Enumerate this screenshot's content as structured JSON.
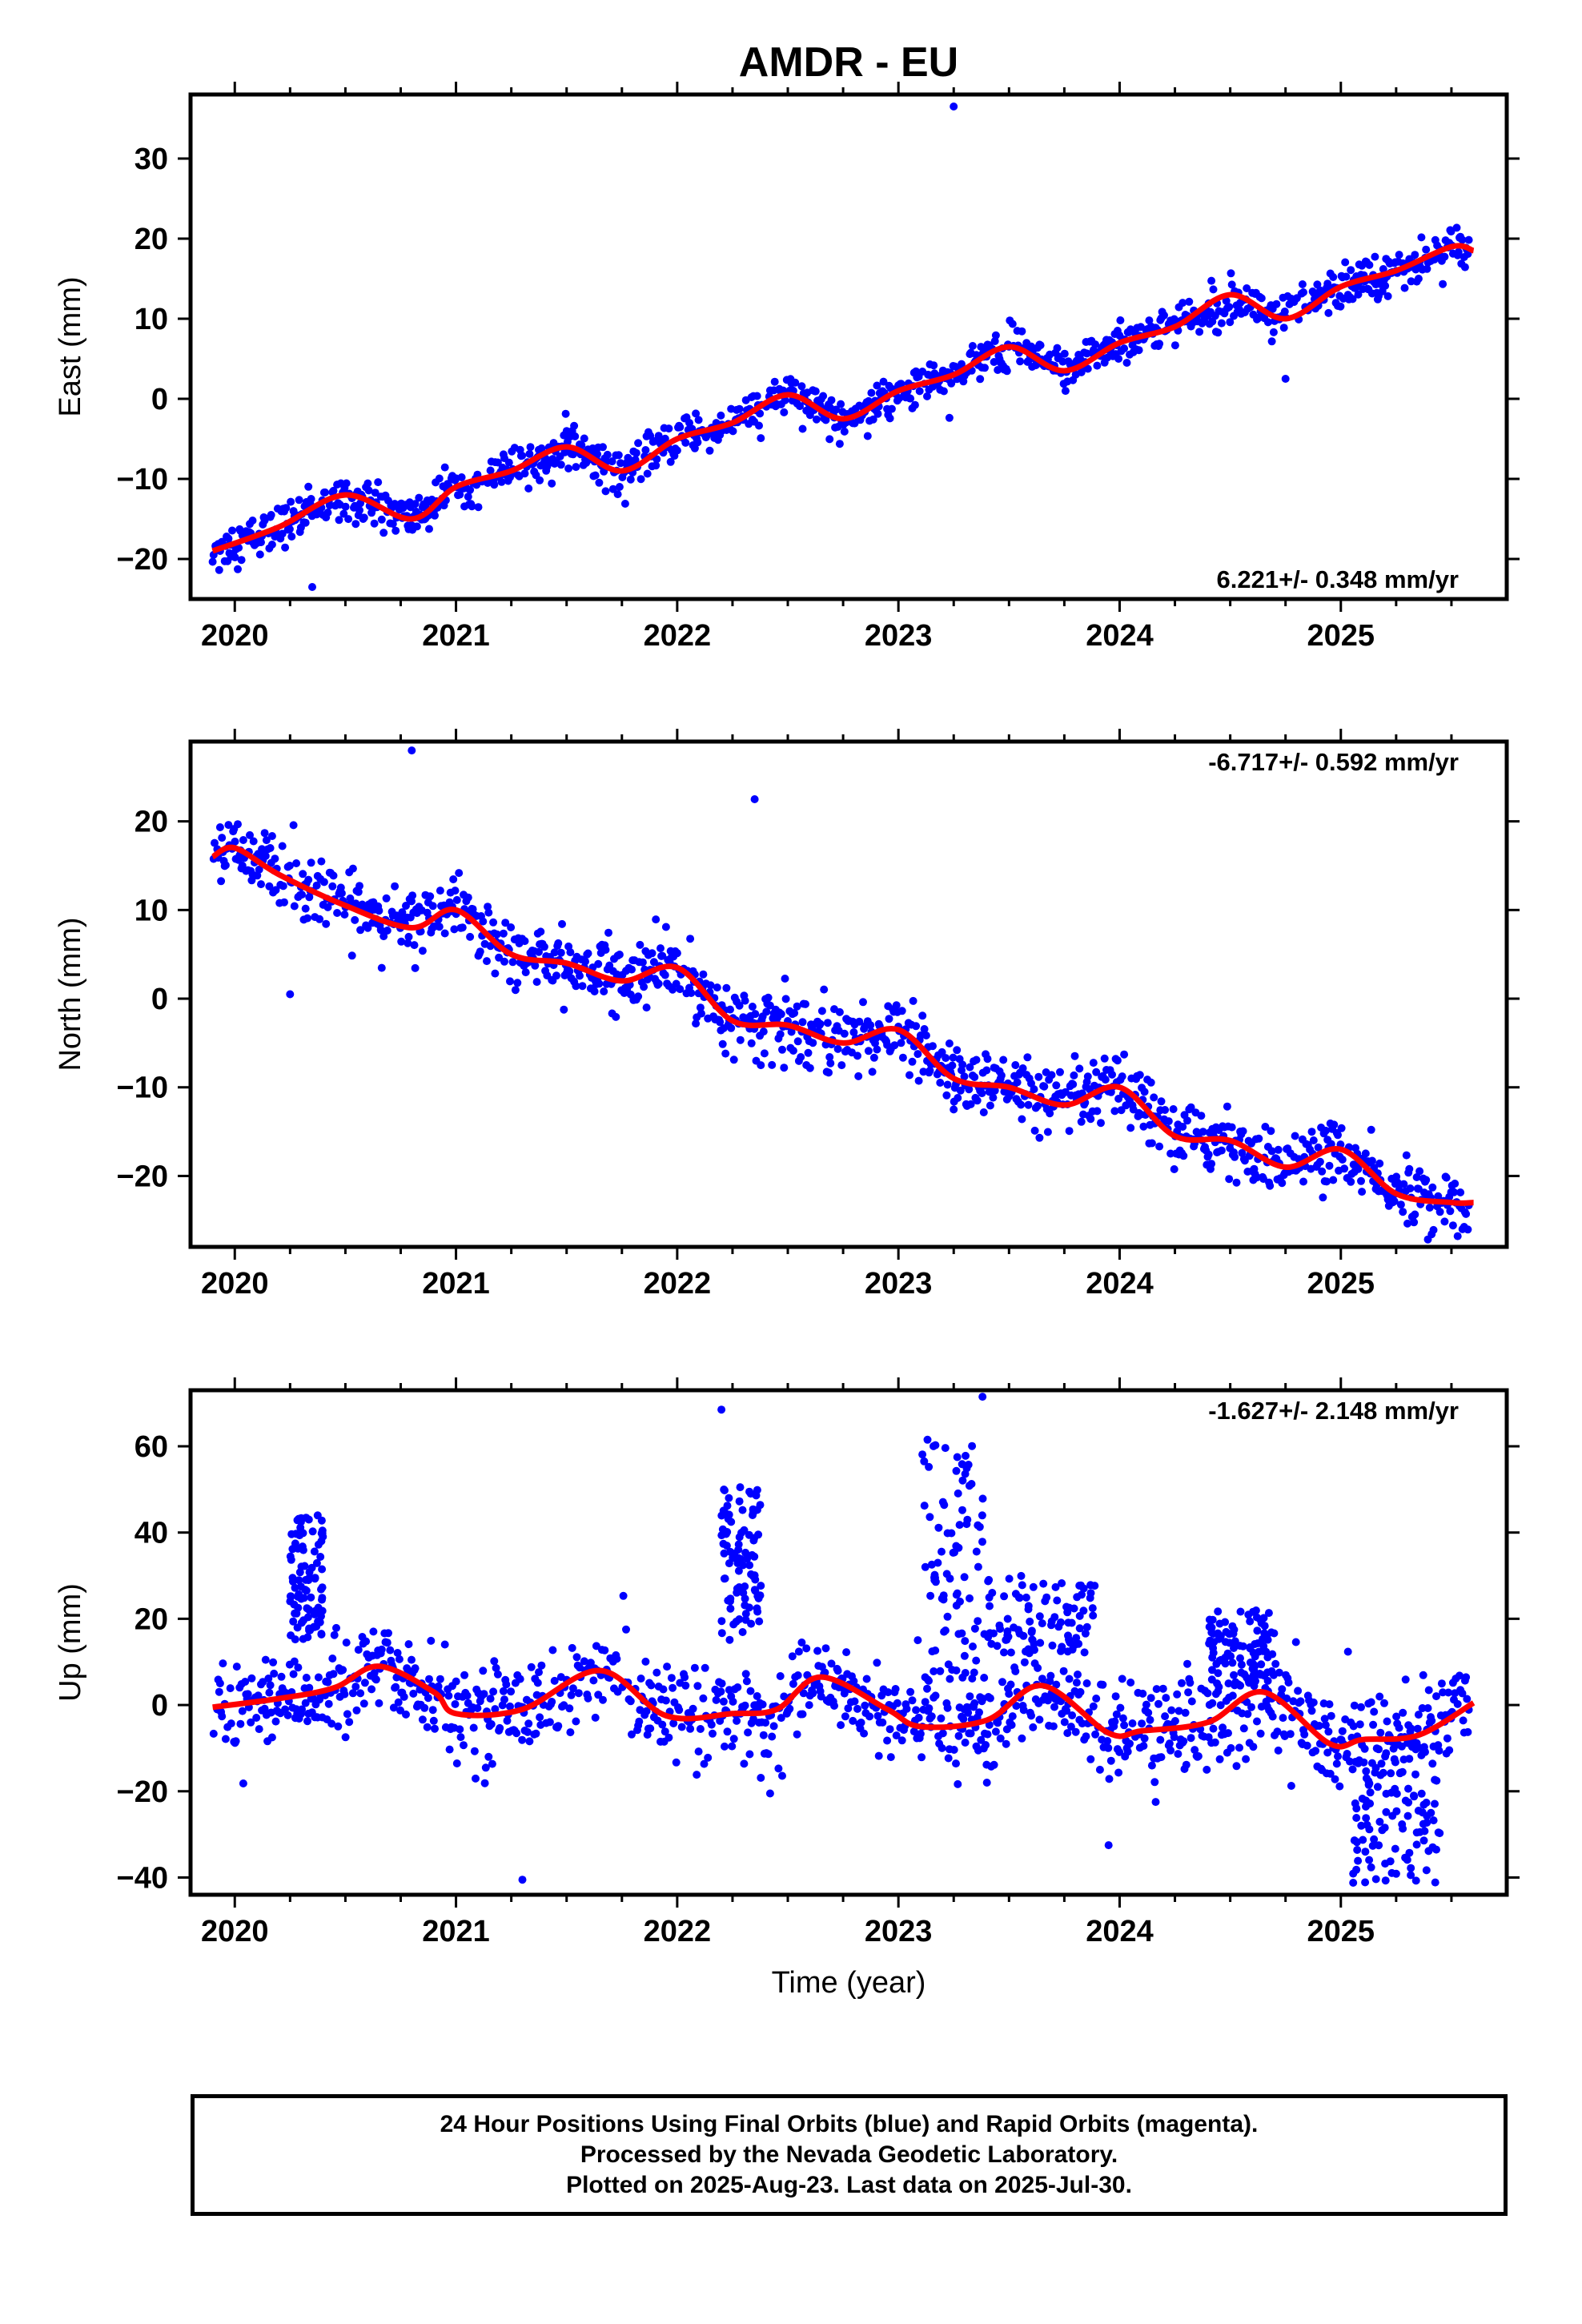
{
  "chart_data": {
    "title": "AMDR - EU",
    "xlabel": "Time (year)",
    "x_tick_labels": [
      "2020",
      "2021",
      "2022",
      "2023",
      "2024",
      "2025"
    ],
    "xlim": [
      2019.8,
      2025.75
    ],
    "colors": {
      "points": "#0000ff",
      "fit": "#ff0000",
      "axis": "#000000"
    },
    "panels": [
      {
        "type": "scatter",
        "ylabel": "East (mm)",
        "ylim": [
          -25,
          38
        ],
        "y_ticks": [
          -20,
          -10,
          0,
          10,
          20,
          30
        ],
        "y_tick_labels": [
          "−20",
          "−10",
          "0",
          "10",
          "20",
          "30"
        ],
        "rate_label": "6.221+/- 0.348 mm/yr",
        "rate_position": "bottom-right",
        "trend": {
          "slope": 6.221,
          "intercept": -18,
          "t0": 2019.9
        },
        "seasonal": {
          "amp": 1.4,
          "phase": 0.3,
          "noise": 1.3,
          "spread": 1.1
        },
        "fit": {
          "x": [
            2019.9,
            2020.2,
            2020.5,
            2020.8,
            2021.0,
            2021.25,
            2021.5,
            2021.75,
            2022.0,
            2022.25,
            2022.5,
            2022.75,
            2023.0,
            2023.25,
            2023.5,
            2023.75,
            2024.0,
            2024.25,
            2024.5,
            2024.75,
            2025.0,
            2025.25,
            2025.5,
            2025.6
          ],
          "y": [
            -19,
            -16,
            -12,
            -15,
            -11,
            -9,
            -6,
            -9,
            -5,
            -3,
            0.5,
            -2.5,
            1,
            3,
            6.5,
            3.5,
            7,
            9,
            13,
            10,
            14,
            16,
            19,
            18.5
          ]
        },
        "outliers": [
          {
            "x": 2023.25,
            "y": 36.5
          },
          {
            "x": 2020.35,
            "y": -23.5
          },
          {
            "x": 2024.75,
            "y": 2.5
          }
        ]
      },
      {
        "type": "scatter",
        "ylabel": "North (mm)",
        "ylim": [
          -28,
          29
        ],
        "y_ticks": [
          -20,
          -10,
          0,
          10,
          20
        ],
        "y_tick_labels": [
          "−20",
          "−10",
          "0",
          "10",
          "20"
        ],
        "rate_label": "-6.717+/- 0.592 mm/yr",
        "rate_position": "top-right",
        "trend": {
          "slope": -6.717,
          "intercept": 16,
          "t0": 2019.9
        },
        "seasonal": {
          "amp": 2.0,
          "phase": 0.1,
          "noise": 1.8,
          "spread": 1.3
        },
        "fit": {
          "x": [
            2019.9,
            2020.0,
            2020.2,
            2020.5,
            2020.8,
            2021.0,
            2021.25,
            2021.5,
            2021.75,
            2022.0,
            2022.25,
            2022.5,
            2022.75,
            2023.0,
            2023.25,
            2023.5,
            2023.75,
            2024.0,
            2024.25,
            2024.5,
            2024.75,
            2025.0,
            2025.25,
            2025.5,
            2025.6
          ],
          "y": [
            16,
            17,
            14,
            10.5,
            8,
            10,
            5,
            4,
            2,
            3.5,
            -2.5,
            -3,
            -5,
            -3.5,
            -9,
            -10,
            -12,
            -10,
            -15.5,
            -16,
            -19,
            -17,
            -22,
            -23,
            -23
          ]
        },
        "outliers": [
          {
            "x": 2020.8,
            "y": 28
          },
          {
            "x": 2022.35,
            "y": 22.5
          },
          {
            "x": 2020.25,
            "y": 0.5
          },
          {
            "x": 2023.25,
            "y": -12.5
          },
          {
            "x": 2025.55,
            "y": -26
          }
        ]
      },
      {
        "type": "scatter",
        "xlabel": "Time (year)",
        "ylabel": "Up (mm)",
        "ylim": [
          -44,
          73
        ],
        "y_ticks": [
          -40,
          -20,
          0,
          20,
          40,
          60
        ],
        "y_tick_labels": [
          "−40",
          "−20",
          "0",
          "20",
          "40",
          "60"
        ],
        "rate_label": "-1.627+/- 2.148 mm/yr",
        "rate_position": "top-right",
        "trend": {
          "slope": -1.627,
          "intercept": 0,
          "t0": 2019.9
        },
        "seasonal": {
          "amp": 6.0,
          "phase": 0.35,
          "noise": 5.5,
          "spread": 5.0
        },
        "fit": {
          "x": [
            2019.9,
            2020.2,
            2020.45,
            2020.65,
            2020.9,
            2021.0,
            2021.3,
            2021.65,
            2021.95,
            2022.25,
            2022.45,
            2022.65,
            2022.95,
            2023.1,
            2023.4,
            2023.65,
            2023.95,
            2024.1,
            2024.4,
            2024.65,
            2024.95,
            2025.1,
            2025.35,
            2025.6
          ],
          "y": [
            -0.5,
            1.5,
            4,
            9,
            3,
            -2,
            -1,
            8,
            -2.5,
            -2,
            -1,
            6.5,
            -1,
            -5,
            -3.5,
            4.5,
            -6.5,
            -6,
            -4,
            3,
            -9,
            -8,
            -7,
            0.5
          ]
        },
        "bursts": [
          {
            "x0": 2020.25,
            "x1": 2020.4,
            "y0": 15,
            "y1": 44
          },
          {
            "x0": 2022.2,
            "x1": 2022.38,
            "y0": 15,
            "y1": 51
          },
          {
            "x0": 2023.1,
            "x1": 2023.4,
            "y0": 5,
            "y1": 63
          },
          {
            "x0": 2023.4,
            "x1": 2023.9,
            "y0": 12,
            "y1": 30
          },
          {
            "x0": 2024.4,
            "x1": 2024.7,
            "y0": 5,
            "y1": 22
          },
          {
            "x0": 2025.05,
            "x1": 2025.45,
            "y0": -42,
            "y1": -15
          }
        ],
        "outliers": [
          {
            "x": 2022.2,
            "y": 68.5
          },
          {
            "x": 2023.38,
            "y": 71.5
          },
          {
            "x": 2021.3,
            "y": -40.5
          },
          {
            "x": 2023.95,
            "y": -32.5
          },
          {
            "x": 2023.4,
            "y": -18
          },
          {
            "x": 2022.42,
            "y": -20.5
          }
        ]
      }
    ]
  },
  "footer": {
    "line1": "24 Hour Positions Using Final Orbits (blue) and Rapid Orbits (magenta).",
    "line2": "Processed by the Nevada Geodetic Laboratory.",
    "line3": "Plotted on 2025-Aug-23. Last data on 2025-Jul-30."
  }
}
